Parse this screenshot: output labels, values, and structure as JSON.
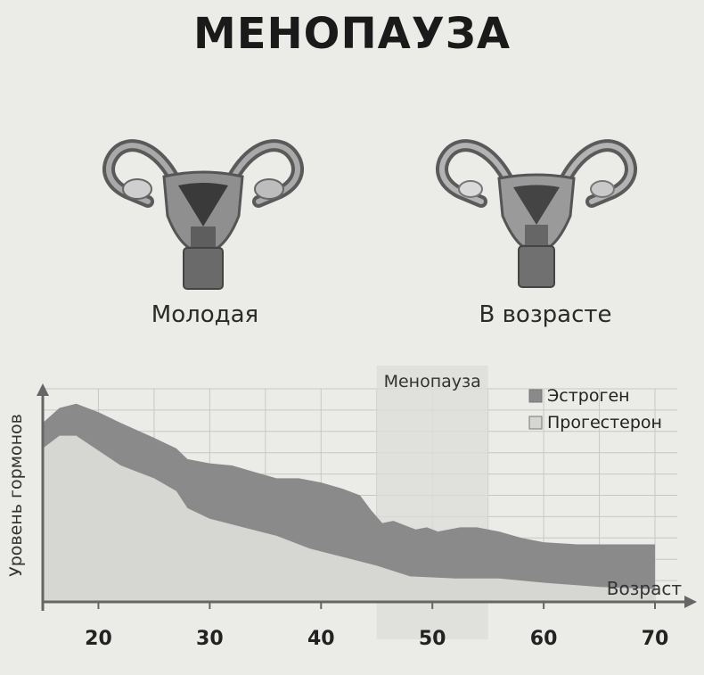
{
  "page": {
    "title": "МЕНОПАУЗА",
    "label_young": "Молодая",
    "label_old": "В возрасте",
    "icons": [
      "uterus-young-icon",
      "uterus-old-icon"
    ]
  },
  "chart_data": {
    "type": "area",
    "title": "",
    "xlabel": "Возраст",
    "ylabel": "Уровень гормонов",
    "x_ticks": [
      20,
      30,
      40,
      50,
      60,
      70
    ],
    "xlim": [
      15,
      72
    ],
    "ylim": [
      0,
      100
    ],
    "band": {
      "label": "Менопауза",
      "from": 45,
      "to": 55
    },
    "legend_position": "top-right",
    "grid": true,
    "series": [
      {
        "name": "Эстроген",
        "color": "#8a8a8a",
        "points": [
          [
            15,
            84
          ],
          [
            16.5,
            91
          ],
          [
            18,
            93
          ],
          [
            20,
            89
          ],
          [
            22,
            84
          ],
          [
            25,
            77
          ],
          [
            27,
            72
          ],
          [
            28,
            67
          ],
          [
            30,
            65
          ],
          [
            32,
            64
          ],
          [
            34,
            61
          ],
          [
            36,
            58
          ],
          [
            38,
            58
          ],
          [
            40,
            56
          ],
          [
            42,
            53
          ],
          [
            43.5,
            50
          ],
          [
            44.5,
            43
          ],
          [
            45.5,
            37
          ],
          [
            46.5,
            38
          ],
          [
            47.5,
            36
          ],
          [
            48.5,
            34
          ],
          [
            49.5,
            35
          ],
          [
            50.5,
            33
          ],
          [
            51.5,
            34
          ],
          [
            52.5,
            35
          ],
          [
            54,
            35
          ],
          [
            56,
            33
          ],
          [
            58,
            30
          ],
          [
            60,
            28
          ],
          [
            63,
            27
          ],
          [
            66,
            27
          ],
          [
            70,
            27
          ]
        ]
      },
      {
        "name": "Прогестерон",
        "color": "#d6d6d3",
        "points": [
          [
            15,
            72
          ],
          [
            16.5,
            78
          ],
          [
            18,
            78
          ],
          [
            20,
            71
          ],
          [
            22,
            64
          ],
          [
            25,
            58
          ],
          [
            27,
            52
          ],
          [
            28,
            44
          ],
          [
            30,
            39
          ],
          [
            33,
            35
          ],
          [
            36,
            31
          ],
          [
            39,
            25
          ],
          [
            42,
            21
          ],
          [
            45,
            17
          ],
          [
            48,
            12
          ],
          [
            52,
            11
          ],
          [
            56,
            11
          ],
          [
            60,
            9
          ],
          [
            65,
            7
          ],
          [
            70,
            6
          ]
        ]
      }
    ]
  }
}
